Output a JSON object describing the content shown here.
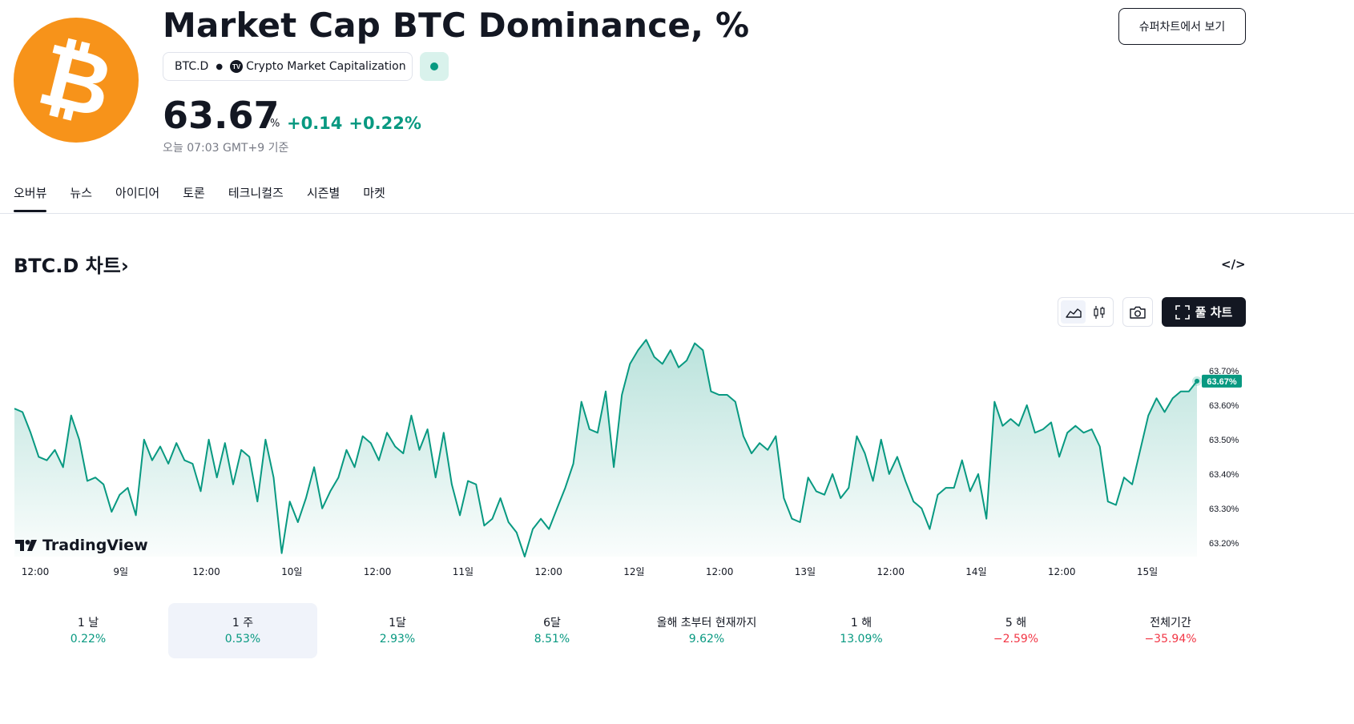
{
  "header": {
    "title": "Market Cap BTC Dominance, %",
    "symbol": "BTC.D",
    "source": "Crypto Market Capitalization",
    "price": "63.67",
    "price_unit": "%",
    "change_abs": "+0.14",
    "change_pct": "+0.22%",
    "as_of": "오늘 07:03 GMT+9 기준",
    "supercharts_label": "슈퍼차트에서 보기",
    "logo_icon": "bitcoin-logo-icon",
    "live_status_icon": "live-dot-icon"
  },
  "tabs": [
    {
      "label": "오버뷰",
      "active": true
    },
    {
      "label": "뉴스",
      "active": false
    },
    {
      "label": "아이디어",
      "active": false
    },
    {
      "label": "토론",
      "active": false
    },
    {
      "label": "테크니컬즈",
      "active": false
    },
    {
      "label": "시즌별",
      "active": false
    },
    {
      "label": "마켓",
      "active": false
    }
  ],
  "chart_section": {
    "title": "BTC.D 차트",
    "title_arrow": "›",
    "embed_icon": "code-embed-icon",
    "full_chart_label": "풀 차트",
    "watermark": "TradingView"
  },
  "colors": {
    "accent_up": "#089981",
    "accent_down": "#f23645",
    "text": "#131722",
    "muted": "#787b86",
    "bitcoin_orange": "#f7931a"
  },
  "chart_data": {
    "type": "area",
    "title": "",
    "xlabel": "",
    "ylabel": "",
    "x_ticks": [
      "12:00",
      "9일",
      "12:00",
      "10일",
      "12:00",
      "11일",
      "12:00",
      "12일",
      "12:00",
      "13일",
      "12:00",
      "14일",
      "12:00",
      "15일"
    ],
    "y_ticks": [
      "63.20%",
      "63.30%",
      "63.40%",
      "63.50%",
      "63.60%",
      "63.70%"
    ],
    "ylim": [
      63.16,
      63.8
    ],
    "last_value_label": "63.67%",
    "grid": false,
    "series": [
      {
        "values": [
          63.59,
          63.58,
          63.52,
          63.45,
          63.44,
          63.47,
          63.42,
          63.57,
          63.5,
          63.38,
          63.39,
          63.37,
          63.29,
          63.34,
          63.36,
          63.28,
          63.5,
          63.44,
          63.48,
          63.43,
          63.49,
          63.44,
          63.43,
          63.35,
          63.5,
          63.39,
          63.49,
          63.37,
          63.47,
          63.45,
          63.32,
          63.5,
          63.39,
          63.17,
          63.32,
          63.26,
          63.33,
          63.42,
          63.3,
          63.35,
          63.39,
          63.47,
          63.42,
          63.51,
          63.49,
          63.44,
          63.52,
          63.48,
          63.46,
          63.57,
          63.47,
          63.53,
          63.39,
          63.52,
          63.37,
          63.28,
          63.38,
          63.37,
          63.25,
          63.27,
          63.33,
          63.26,
          63.23,
          63.16,
          63.24,
          63.27,
          63.24,
          63.3,
          63.36,
          63.43,
          63.61,
          63.53,
          63.52,
          63.64,
          63.42,
          63.63,
          63.72,
          63.76,
          63.79,
          63.74,
          63.72,
          63.76,
          63.71,
          63.73,
          63.78,
          63.76,
          63.64,
          63.63,
          63.63,
          63.61,
          63.51,
          63.46,
          63.49,
          63.47,
          63.51,
          63.33,
          63.27,
          63.26,
          63.39,
          63.35,
          63.34,
          63.4,
          63.33,
          63.36,
          63.51,
          63.46,
          63.38,
          63.5,
          63.4,
          63.45,
          63.38,
          63.32,
          63.3,
          63.24,
          63.34,
          63.36,
          63.36,
          63.44,
          63.35,
          63.4,
          63.27,
          63.61,
          63.54,
          63.56,
          63.54,
          63.6,
          63.52,
          63.53,
          63.55,
          63.45,
          63.52,
          63.54,
          63.52,
          63.53,
          63.48,
          63.32,
          63.31,
          63.39,
          63.37,
          63.47,
          63.57,
          63.62,
          63.58,
          63.62,
          63.64,
          63.64,
          63.67
        ]
      }
    ]
  },
  "periods": [
    {
      "label": "1 날",
      "value": "0.22%",
      "positive": true,
      "selected": false
    },
    {
      "label": "1 주",
      "value": "0.53%",
      "positive": true,
      "selected": true
    },
    {
      "label": "1달",
      "value": "2.93%",
      "positive": true,
      "selected": false
    },
    {
      "label": "6달",
      "value": "8.51%",
      "positive": true,
      "selected": false
    },
    {
      "label": "올해 초부터 현재까지",
      "value": "9.62%",
      "positive": true,
      "selected": false
    },
    {
      "label": "1 해",
      "value": "13.09%",
      "positive": true,
      "selected": false
    },
    {
      "label": "5 해",
      "value": "−2.59%",
      "positive": false,
      "selected": false
    },
    {
      "label": "전체기간",
      "value": "−35.94%",
      "positive": false,
      "selected": false
    }
  ]
}
